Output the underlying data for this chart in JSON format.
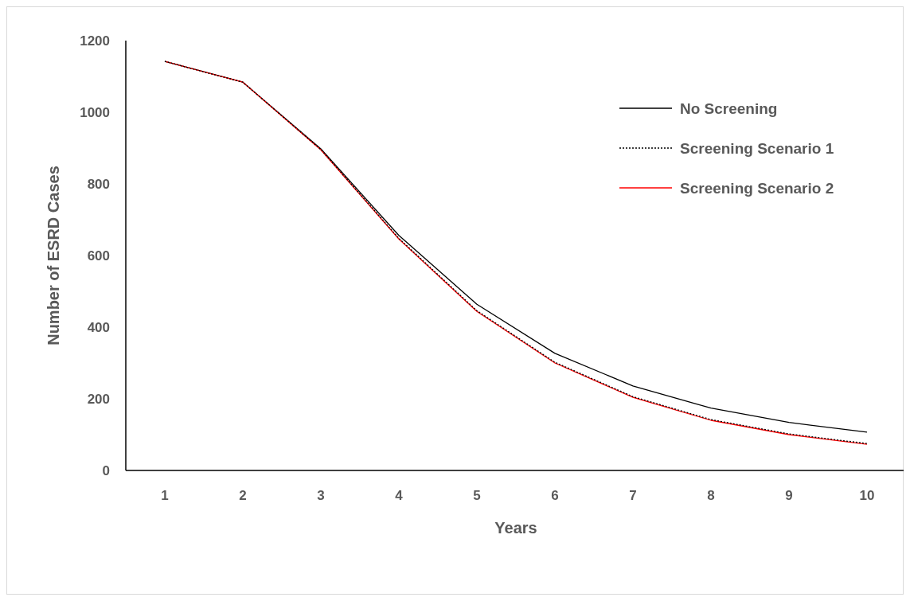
{
  "chart_data": {
    "type": "line",
    "xlabel": "Years",
    "ylabel": "Number of ESRD Cases",
    "categories": [
      "1",
      "2",
      "3",
      "4",
      "5",
      "6",
      "7",
      "8",
      "9",
      "10"
    ],
    "ylim": [
      0,
      1200
    ],
    "yticks": [
      0,
      200,
      400,
      600,
      800,
      1000,
      1200
    ],
    "grid": false,
    "legend": "top right",
    "series": [
      {
        "name": "No Screening",
        "color": "#000000",
        "line_style": "solid",
        "values": [
          1142,
          1084,
          898,
          656,
          464,
          327,
          236,
          174,
          134,
          107
        ]
      },
      {
        "name": "Screening Scenario 1",
        "color": "#000000",
        "line_style": "dotted",
        "values": [
          1142,
          1084,
          896,
          648,
          446,
          302,
          206,
          142,
          102,
          75
        ]
      },
      {
        "name": "Screening Scenario 2",
        "color": "#ff0000",
        "line_style": "solid",
        "values": [
          1142,
          1084,
          895,
          646,
          444,
          300,
          204,
          140,
          100,
          73
        ]
      }
    ]
  }
}
